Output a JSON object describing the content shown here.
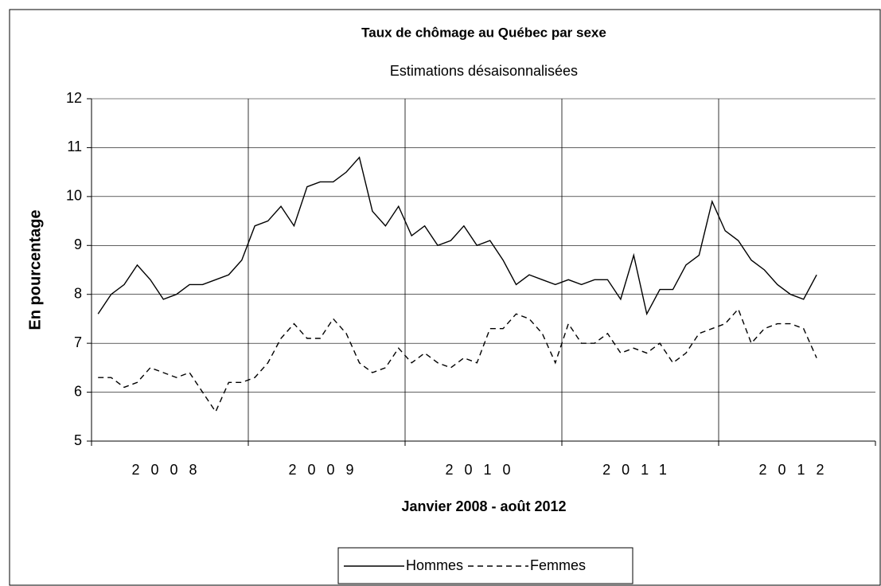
{
  "chart_data": {
    "type": "line",
    "title": "Taux de chômage au Québec par sexe",
    "subtitle": "Estimations désaisonnalisées",
    "y_label": "En pourcentage",
    "x_label": "Janvier 2008 - août 2012",
    "groups": [
      "2008",
      "2009",
      "2010",
      "2011",
      "2012"
    ],
    "categories": [
      null,
      null,
      null,
      null,
      null,
      null,
      null,
      null,
      null,
      null,
      null,
      null,
      null,
      null,
      null,
      null,
      null,
      null,
      null,
      null,
      null,
      null,
      null,
      null,
      null,
      null,
      null,
      null,
      null,
      null,
      null,
      null,
      null,
      null,
      null,
      null,
      null,
      null,
      null,
      null,
      null,
      null,
      null,
      null,
      null,
      null,
      null,
      null,
      null,
      null,
      null,
      null,
      null,
      null,
      null,
      null,
      null,
      null,
      null,
      null
    ],
    "series": [
      {
        "name": "Hommes",
        "color": "#000000",
        "dashed": false,
        "values": [
          7.6,
          8.0,
          8.2,
          8.6,
          8.3,
          7.9,
          8.0,
          8.2,
          8.2,
          8.3,
          8.4,
          8.7,
          9.4,
          9.5,
          9.8,
          9.4,
          10.2,
          10.3,
          10.3,
          10.5,
          10.8,
          9.7,
          9.4,
          9.8,
          9.2,
          9.4,
          9.0,
          9.1,
          9.4,
          9.0,
          9.1,
          8.7,
          8.2,
          8.4,
          8.3,
          8.2,
          8.3,
          8.2,
          8.3,
          8.3,
          7.9,
          8.8,
          7.6,
          8.1,
          8.1,
          8.6,
          8.8,
          9.9,
          9.3,
          9.1,
          8.7,
          8.5,
          8.2,
          8.0,
          7.9,
          8.4,
          null,
          null,
          null,
          null
        ]
      },
      {
        "name": "Femmes",
        "color": "#000000",
        "dashed": true,
        "values": [
          6.3,
          6.3,
          6.1,
          6.2,
          6.5,
          6.4,
          6.3,
          6.4,
          6.0,
          5.6,
          6.2,
          6.2,
          6.3,
          6.6,
          7.1,
          7.4,
          7.1,
          7.1,
          7.5,
          7.2,
          6.6,
          6.4,
          6.5,
          6.9,
          6.6,
          6.8,
          6.6,
          6.5,
          6.7,
          6.6,
          7.3,
          7.3,
          7.6,
          7.5,
          7.2,
          6.6,
          7.4,
          7.0,
          7.0,
          7.2,
          6.8,
          6.9,
          6.8,
          7.0,
          6.6,
          6.8,
          7.2,
          7.3,
          7.4,
          7.7,
          7.0,
          7.3,
          7.4,
          7.4,
          7.3,
          6.7,
          null,
          null,
          null,
          null
        ]
      }
    ],
    "ylim": [
      5,
      12
    ],
    "yticks": [
      5,
      6,
      7,
      8,
      9,
      10,
      11,
      12
    ],
    "grid": true,
    "legend": "bottom"
  }
}
